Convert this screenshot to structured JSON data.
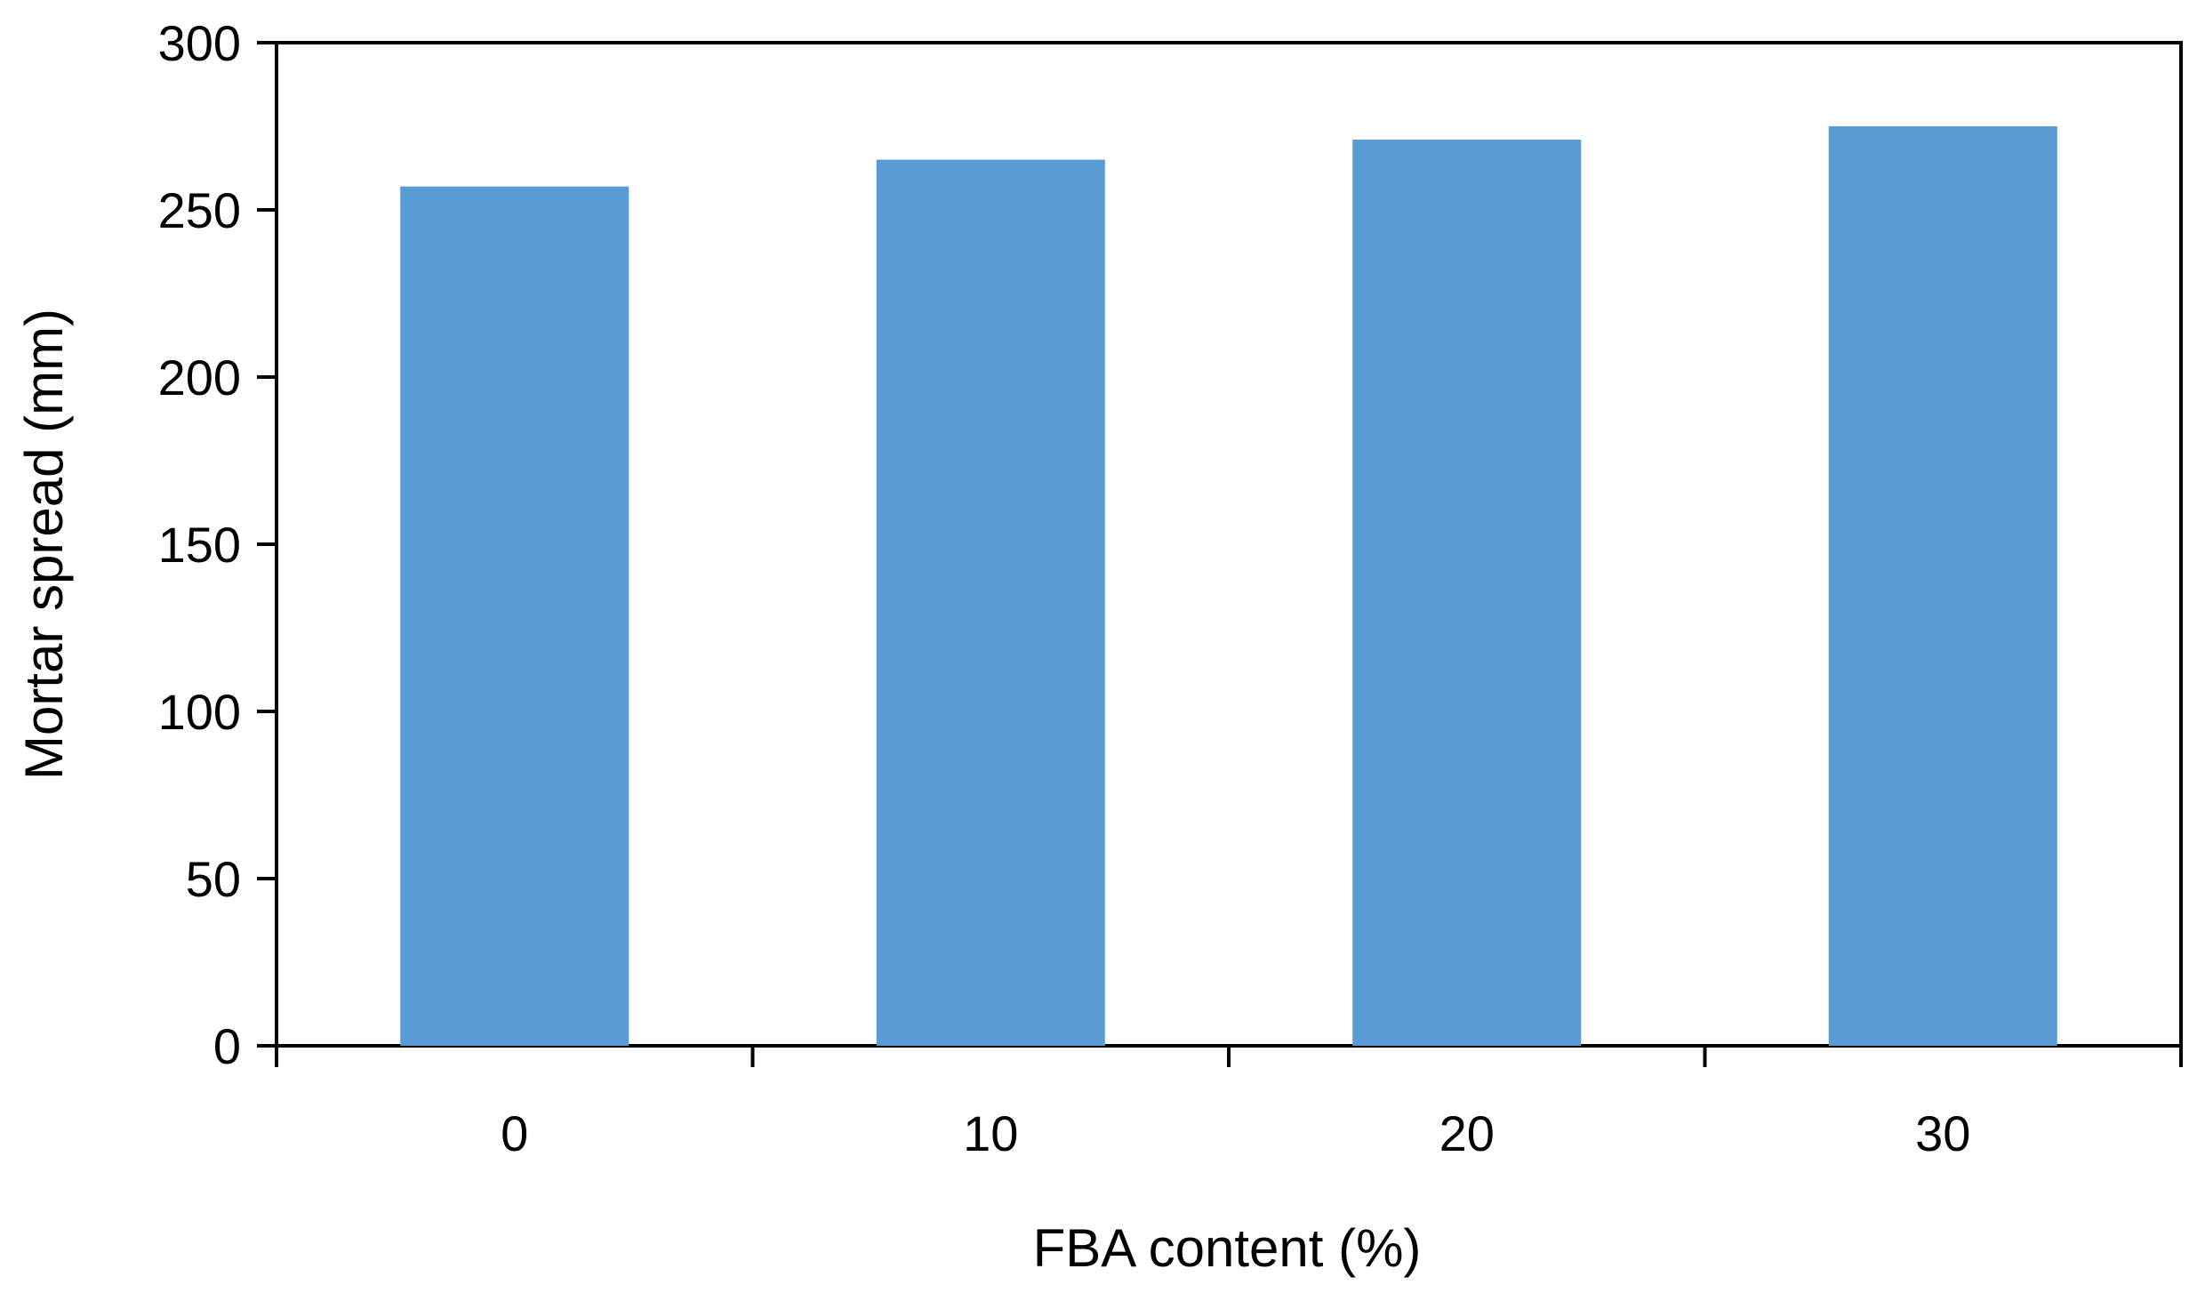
{
  "chart_data": {
    "type": "bar",
    "title": "",
    "xlabel": "FBA content (%)",
    "ylabel": "Mortar spread (mm)",
    "categories": [
      "0",
      "10",
      "20",
      "30"
    ],
    "values": [
      257,
      265,
      271,
      275
    ],
    "ylim": [
      0,
      300
    ],
    "yticks": [
      "0",
      "50",
      "100",
      "150",
      "200",
      "250",
      "300"
    ],
    "ytick_values": [
      0,
      50,
      100,
      150,
      200,
      250,
      300
    ],
    "grid": false,
    "legend": "none",
    "bar_color": "#5b9bd5"
  }
}
